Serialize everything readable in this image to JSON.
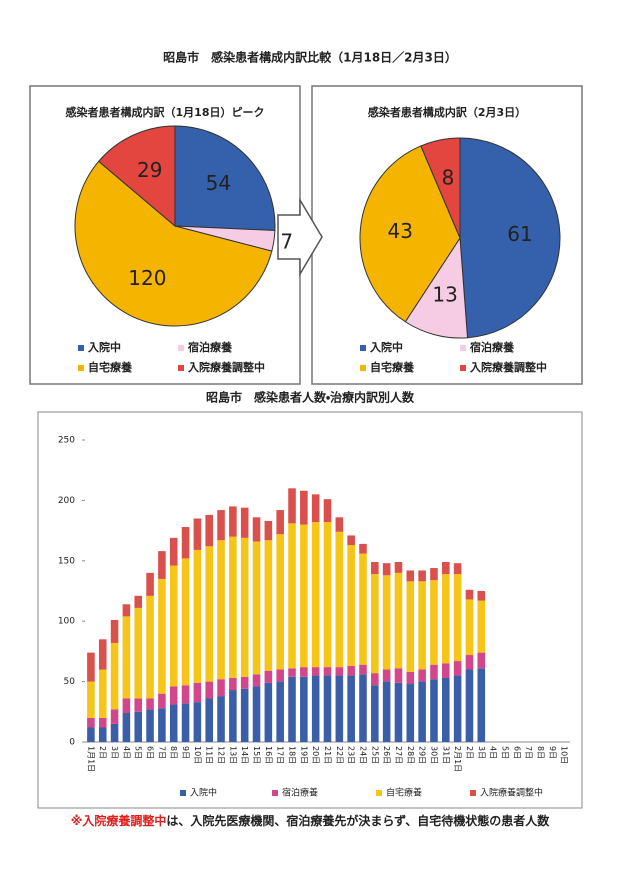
{
  "title": "昭島市　感染患者構成内訳比較（1月18日／2月3日）",
  "chart_data": [
    {
      "type": "pie",
      "title": "感染者患者構成内訳（1月18日）ピーク",
      "categories": [
        "入院中",
        "宿泊療養",
        "自宅療養",
        "入院療養調整中"
      ],
      "values": [
        54,
        7,
        120,
        29
      ],
      "colors": [
        "#3460ac",
        "#f6cce4",
        "#f4b400",
        "#e2463e"
      ]
    },
    {
      "type": "pie",
      "title": "感染者患者構成内訳（2月3日）",
      "categories": [
        "入院中",
        "宿泊療養",
        "自宅療養",
        "入院療養調整中"
      ],
      "values": [
        61,
        13,
        43,
        8
      ],
      "colors": [
        "#3460ac",
        "#f6cce4",
        "#f4b400",
        "#e2463e"
      ]
    },
    {
      "type": "stacked-bar",
      "title": "昭島市　感染患者人数・治療内訳別人数",
      "categories": [
        "1月1日",
        "2日",
        "3日",
        "4日",
        "5日",
        "6日",
        "7日",
        "8日",
        "9日",
        "10日",
        "11日",
        "12日",
        "13日",
        "14日",
        "15日",
        "16日",
        "17日",
        "18日",
        "19日",
        "20日",
        "21日",
        "22日",
        "23日",
        "24日",
        "25日",
        "26日",
        "27日",
        "28日",
        "29日",
        "30日",
        "31日",
        "2月1日",
        "2日",
        "3日",
        "4日",
        "5日",
        "6日",
        "7日",
        "8日",
        "9日",
        "10日"
      ],
      "series": [
        {
          "name": "入院中",
          "color": "#3a5fa8",
          "values": [
            12,
            12,
            15,
            24,
            25,
            27,
            28,
            31,
            32,
            33,
            36,
            38,
            43,
            44,
            46,
            49,
            50,
            54,
            54,
            55,
            55,
            55,
            55,
            56,
            47,
            50,
            49,
            48,
            50,
            52,
            53,
            55,
            60,
            61,
            null,
            null,
            null,
            null,
            null,
            null,
            null
          ]
        },
        {
          "name": "宿泊療養",
          "color": "#d2478c",
          "values": [
            8,
            8,
            12,
            12,
            11,
            9,
            12,
            15,
            15,
            16,
            14,
            14,
            10,
            10,
            10,
            10,
            10,
            7,
            8,
            7,
            7,
            7,
            8,
            8,
            10,
            10,
            12,
            10,
            10,
            12,
            12,
            12,
            12,
            13,
            null,
            null,
            null,
            null,
            null,
            null,
            null
          ]
        },
        {
          "name": "自宅療養",
          "color": "#f5c518",
          "values": [
            30,
            40,
            55,
            68,
            75,
            85,
            95,
            100,
            105,
            110,
            112,
            115,
            117,
            115,
            110,
            108,
            112,
            120,
            118,
            120,
            120,
            112,
            100,
            92,
            82,
            78,
            79,
            75,
            73,
            70,
            74,
            72,
            46,
            43,
            null,
            null,
            null,
            null,
            null,
            null,
            null
          ]
        },
        {
          "name": "入院療養調整中",
          "color": "#d9504c",
          "values": [
            24,
            25,
            19,
            10,
            10,
            19,
            23,
            23,
            26,
            26,
            26,
            25,
            25,
            25,
            20,
            16,
            20,
            29,
            28,
            23,
            19,
            12,
            8,
            8,
            10,
            10,
            9,
            9,
            9,
            10,
            10,
            9,
            8,
            8,
            null,
            null,
            null,
            null,
            null,
            null,
            null
          ]
        }
      ],
      "ylim": [
        0,
        250
      ],
      "yticks": [
        0,
        50,
        100,
        150,
        200,
        250
      ]
    }
  ],
  "note": {
    "mark": "※",
    "highlight": "入院療養調整中",
    "text": "は、入院先医療機関、宿泊療養先が決まらず、自宅待機状態の患者人数"
  }
}
